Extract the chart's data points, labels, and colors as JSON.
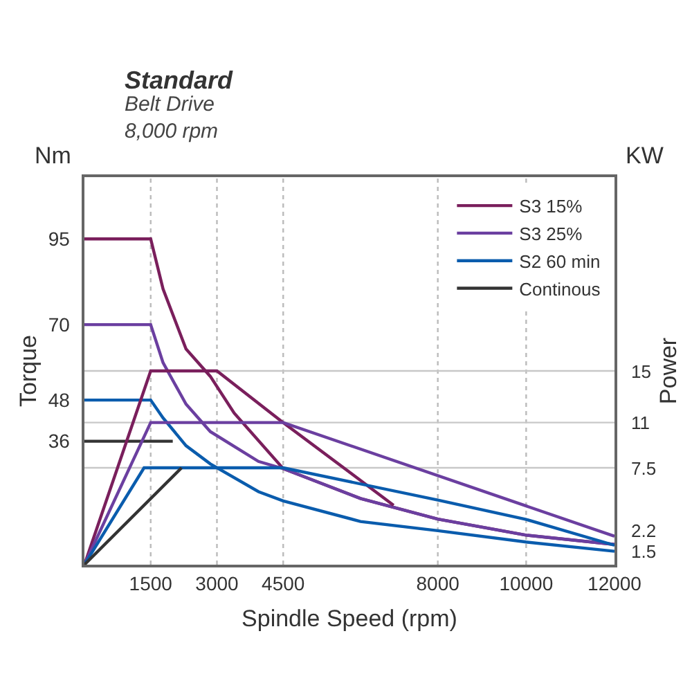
{
  "chart_data": {
    "type": "line",
    "title": "Standard",
    "subtitle": "Belt Drive\n8,000 rpm",
    "xlabel": "Spindle Speed (rpm)",
    "ylabel": "Torque",
    "y2label": "Power",
    "annotations": [
      "Nm",
      "KW"
    ],
    "xlim": [
      0,
      12000
    ],
    "xticks": [
      1500,
      3000,
      4500,
      8000,
      10000,
      12000
    ],
    "ylim": [
      0,
      113
    ],
    "yticks": [
      36,
      48,
      70,
      95
    ],
    "y2lim": [
      0,
      30
    ],
    "y2ticks": [
      1.5,
      2.2,
      7.5,
      11,
      15
    ],
    "legend": "top right",
    "grid": false,
    "marker": "none",
    "line_style": "solid",
    "ref_lines": [
      {
        "axis": "x",
        "value": 1500,
        "color": "#bbbbbb",
        "line_style": "dotted"
      },
      {
        "axis": "x",
        "value": 3000,
        "color": "#bbbbbb",
        "line_style": "dotted"
      },
      {
        "axis": "x",
        "value": 4500,
        "color": "#bbbbbb",
        "line_style": "dotted"
      },
      {
        "axis": "x",
        "value": 8000,
        "color": "#bbbbbb",
        "line_style": "dotted"
      },
      {
        "axis": "x",
        "value": 10000,
        "color": "#bbbbbb",
        "line_style": "dotted"
      },
      {
        "axis": "y2",
        "value": 15,
        "color": "#c8c8c8",
        "line_style": "solid"
      },
      {
        "axis": "y2",
        "value": 11,
        "color": "#c8c8c8",
        "line_style": "solid"
      },
      {
        "axis": "y2",
        "value": 7.5,
        "color": "#c8c8c8",
        "line_style": "solid"
      }
    ],
    "series": [
      {
        "name": "S3 15%",
        "color": "#7a1f5c",
        "x": [
          0,
          1500,
          1780,
          2300,
          2850,
          3390,
          4500,
          6250,
          8000,
          10000,
          12000
        ],
        "values": [
          95,
          95,
          80.4,
          62.9,
          54.9,
          44.2,
          28,
          19.3,
          13.3,
          8.6,
          5.9
        ]
      },
      {
        "name": "S3 25%",
        "color": "#6b3fa0",
        "x": [
          0,
          1500,
          1780,
          2300,
          2850,
          3940,
          4500,
          6250,
          8000,
          10000,
          12000
        ],
        "values": [
          70,
          70,
          58.9,
          46.8,
          38.8,
          30.1,
          28,
          19.3,
          13.3,
          8.6,
          5.9
        ]
      },
      {
        "name": "S2 60 min",
        "color": "#0a5cad",
        "x": [
          0,
          1500,
          1780,
          2300,
          2850,
          3940,
          4500,
          6250,
          8000,
          10000,
          12000
        ],
        "values": [
          48,
          48,
          42.8,
          34.7,
          29.4,
          21.3,
          18.6,
          12.6,
          9.9,
          6.6,
          3.9
        ]
      },
      {
        "name": "Continous",
        "color": "#333333",
        "x": [
          0,
          2000
        ],
        "values": [
          36,
          36
        ]
      },
      {
        "color": "#7a1f5c",
        "axis": "y2",
        "x": [
          0,
          1500,
          3000,
          4500,
          7000
        ],
        "values": [
          0,
          15,
          15,
          11,
          4.6
        ]
      },
      {
        "color": "#6b3fa0",
        "axis": "y2",
        "x": [
          0,
          1500,
          4500,
          12000
        ],
        "values": [
          0,
          11,
          11,
          2.2
        ]
      },
      {
        "color": "#0a5cad",
        "axis": "y2",
        "x": [
          0,
          1350,
          4500,
          8000,
          10000,
          12000
        ],
        "values": [
          0,
          7.5,
          7.5,
          5.0,
          3.5,
          1.5
        ]
      },
      {
        "color": "#333333",
        "axis": "y2",
        "x": [
          0,
          2200
        ],
        "values": [
          0,
          7.5
        ]
      }
    ]
  }
}
